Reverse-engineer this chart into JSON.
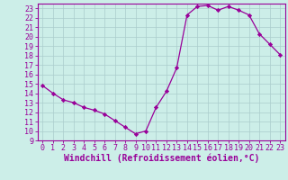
{
  "x": [
    0,
    1,
    2,
    3,
    4,
    5,
    6,
    7,
    8,
    9,
    10,
    11,
    12,
    13,
    14,
    15,
    16,
    17,
    18,
    19,
    20,
    21,
    22,
    23
  ],
  "y": [
    14.8,
    14.0,
    13.3,
    13.0,
    12.5,
    12.2,
    11.8,
    11.1,
    10.4,
    9.7,
    10.0,
    12.5,
    14.2,
    16.7,
    22.3,
    23.2,
    23.3,
    22.8,
    23.2,
    22.8,
    22.3,
    20.3,
    19.2,
    18.1
  ],
  "line_color": "#990099",
  "marker": "D",
  "marker_size": 2.2,
  "bg_color": "#cceee8",
  "grid_color": "#aacccc",
  "xlabel": "Windchill (Refroidissement éolien,°C)",
  "ylim": [
    9,
    23.5
  ],
  "xlim": [
    -0.5,
    23.5
  ],
  "yticks": [
    9,
    10,
    11,
    12,
    13,
    14,
    15,
    16,
    17,
    18,
    19,
    20,
    21,
    22,
    23
  ],
  "xticks": [
    0,
    1,
    2,
    3,
    4,
    5,
    6,
    7,
    8,
    9,
    10,
    11,
    12,
    13,
    14,
    15,
    16,
    17,
    18,
    19,
    20,
    21,
    22,
    23
  ],
  "tick_color": "#990099",
  "label_color": "#990099",
  "axis_color": "#990099",
  "tick_fontsize": 6.0,
  "xlabel_fontsize": 7.0
}
